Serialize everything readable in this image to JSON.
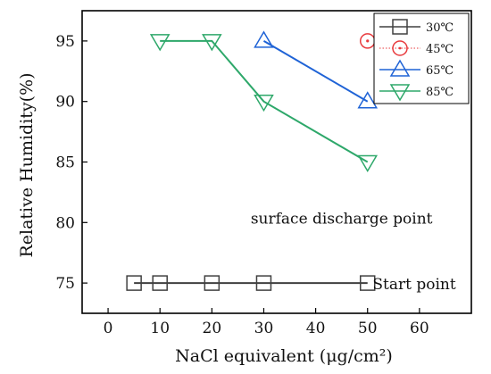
{
  "chart_data": {
    "type": "line",
    "xlabel": "NaCl equivalent (μg/cm²)",
    "ylabel": "Relative Humidity(%)",
    "xlim": [
      -5,
      70
    ],
    "ylim": [
      72.5,
      97.5
    ],
    "xticks": [
      0,
      10,
      20,
      30,
      40,
      50,
      60
    ],
    "yticks": [
      75,
      80,
      85,
      90,
      95
    ],
    "grid": false,
    "legend_position": "top-right",
    "series": [
      {
        "name": "30℃",
        "color": "#404040",
        "marker": "square",
        "x": [
          5,
          10,
          20,
          30,
          50
        ],
        "y": [
          75,
          75,
          75,
          75,
          75
        ]
      },
      {
        "name": "45℃",
        "color": "#e8393c",
        "marker": "circle",
        "line": "dotted",
        "x": [
          50
        ],
        "y": [
          95
        ]
      },
      {
        "name": "65℃",
        "color": "#1f63d6",
        "marker": "triangle-up",
        "x": [
          30,
          50
        ],
        "y": [
          95,
          90
        ]
      },
      {
        "name": "85℃",
        "color": "#2ea86a",
        "marker": "triangle-down",
        "x": [
          10,
          20,
          30,
          50
        ],
        "y": [
          95,
          95,
          90,
          85
        ]
      }
    ],
    "annotations": [
      {
        "text": "surface discharge point",
        "x": 45,
        "y": 79.9
      },
      {
        "text": "Start point",
        "x": 59,
        "y": 74.5
      }
    ]
  }
}
